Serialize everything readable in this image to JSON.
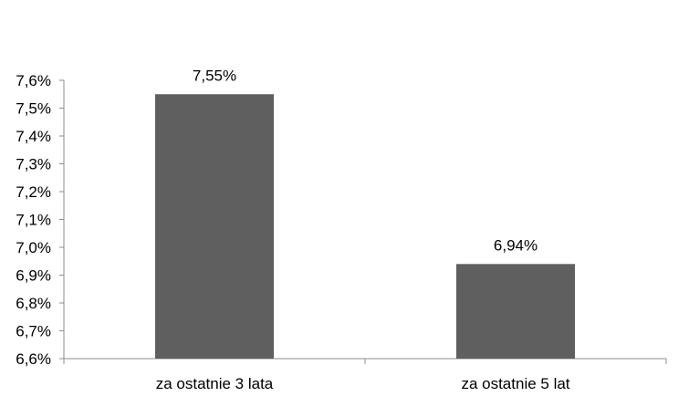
{
  "chart_data": {
    "type": "bar",
    "categories": [
      "za ostatnie 3 lata",
      "za ostatnie 5 lat"
    ],
    "values": [
      7.55,
      6.94
    ],
    "data_labels": [
      "7,55%",
      "6,94%"
    ],
    "ylim": [
      6.6,
      7.6
    ],
    "y_ticks": [
      6.6,
      6.7,
      6.8,
      6.9,
      7.0,
      7.1,
      7.2,
      7.3,
      7.4,
      7.5,
      7.6
    ],
    "y_tick_labels": [
      "6,6%",
      "6,7%",
      "6,8%",
      "6,9%",
      "7,0%",
      "7,1%",
      "7,2%",
      "7,3%",
      "7,4%",
      "7,5%",
      "7,6%"
    ],
    "grid": false,
    "legend": "none",
    "bar_color": "#5f5f5f",
    "axis_color": "#8c8c8c"
  }
}
